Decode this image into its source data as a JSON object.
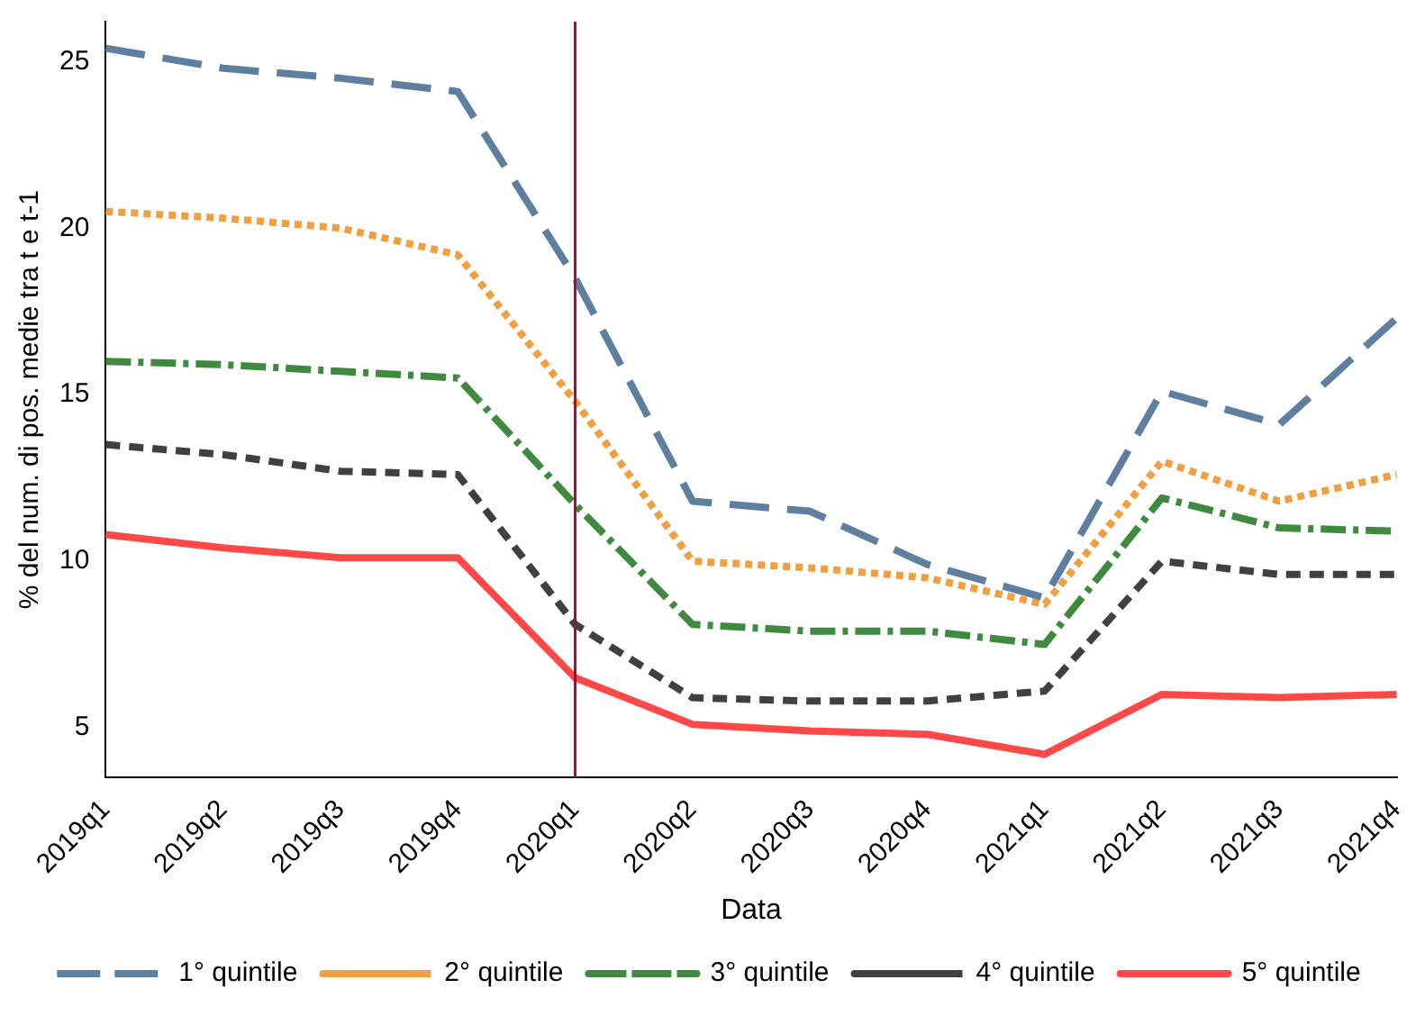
{
  "chart_data": {
    "type": "line",
    "xlabel": "Data",
    "ylabel": "% del num. di pos. medie tra t e t-1",
    "categories": [
      "2019q1",
      "2019q2",
      "2019q3",
      "2019q4",
      "2020q1",
      "2020q2",
      "2020q3",
      "2020q4",
      "2021q1",
      "2021q2",
      "2021q3",
      "2021q4"
    ],
    "series": [
      {
        "name": "1° quintile",
        "color": "#5f7fa0",
        "line_style": "dashed",
        "values": [
          25.4,
          24.8,
          24.5,
          24.1,
          18.5,
          11.8,
          11.5,
          9.9,
          8.9,
          15.1,
          14.1,
          17.3
        ]
      },
      {
        "name": "2° quintile",
        "color": "#f0a040",
        "line_style": "dotted",
        "values": [
          20.5,
          20.3,
          20.0,
          19.2,
          14.8,
          10.0,
          9.8,
          9.5,
          8.7,
          13.0,
          11.8,
          12.6
        ]
      },
      {
        "name": "3° quintile",
        "color": "#3f8a3f",
        "line_style": "dashdot",
        "values": [
          16.0,
          15.9,
          15.7,
          15.5,
          11.7,
          8.1,
          7.9,
          7.9,
          7.5,
          11.9,
          11.0,
          10.9
        ]
      },
      {
        "name": "4° quintile",
        "color": "#404040",
        "line_style": "shortdash",
        "values": [
          13.5,
          13.2,
          12.7,
          12.6,
          8.1,
          5.9,
          5.8,
          5.8,
          6.1,
          10.0,
          9.6,
          9.6
        ]
      },
      {
        "name": "5° quintile",
        "color": "#ff4848",
        "line_style": "solid",
        "values": [
          10.8,
          10.4,
          10.1,
          10.1,
          6.5,
          5.1,
          4.9,
          4.8,
          4.2,
          6.0,
          5.9,
          6.0
        ]
      }
    ],
    "ylim": [
      3.5,
      26.2
    ],
    "yticks": [
      5,
      10,
      15,
      20,
      25
    ],
    "grid": false,
    "legend": "bottom",
    "marker": "none",
    "ref_lines": [
      {
        "axis": "x",
        "value": "2020q1",
        "color": "#a0103a"
      }
    ]
  }
}
